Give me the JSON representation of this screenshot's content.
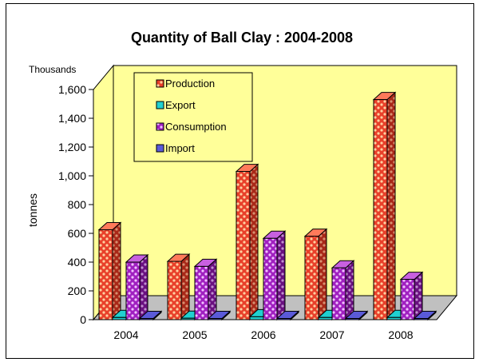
{
  "chart_data": {
    "type": "bar",
    "title": "Quantity of Ball Clay : 2004-2008",
    "ylabel": "tonnes",
    "yunit": "Thousands",
    "xlabel": "",
    "ylim": [
      0,
      1600
    ],
    "yticks": [
      0,
      200,
      400,
      600,
      800,
      1000,
      1200,
      1400,
      1600
    ],
    "ytick_labels": [
      "0",
      "200",
      "400",
      "600",
      "800",
      "1,000",
      "1,200",
      "1,400",
      "1,600"
    ],
    "categories": [
      "2004",
      "2005",
      "2006",
      "2007",
      "2008"
    ],
    "series": [
      {
        "name": "Production",
        "values": [
          625,
          405,
          1030,
          580,
          1530
        ],
        "color": "#e8402a",
        "pattern": "dots-red"
      },
      {
        "name": "Export",
        "values": [
          15,
          10,
          20,
          15,
          15
        ],
        "color": "#20d0d0",
        "pattern": "solid"
      },
      {
        "name": "Consumption",
        "values": [
          400,
          370,
          565,
          360,
          280
        ],
        "color": "#a020c0",
        "pattern": "dots-purple"
      },
      {
        "name": "Import",
        "values": [
          8,
          8,
          8,
          8,
          8
        ],
        "color": "#5a5ad8",
        "pattern": "solid"
      }
    ],
    "grid": false,
    "legend_position": "top-left",
    "background": "#ffff99",
    "floor_color": "#c0c0c0"
  }
}
